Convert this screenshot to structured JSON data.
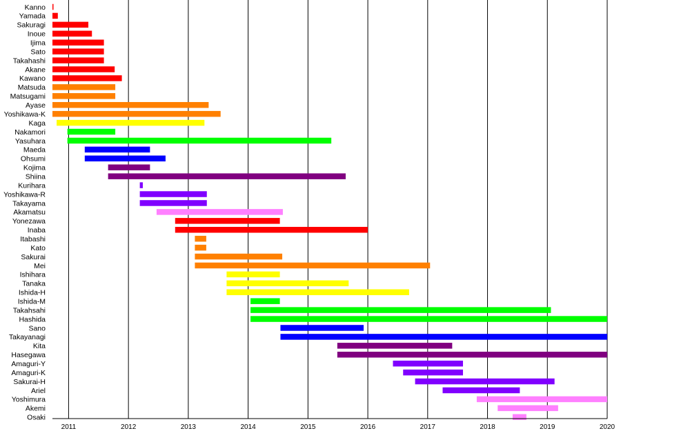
{
  "chart_data": {
    "type": "timeline",
    "x_unit": "year",
    "xlim": [
      2010.73,
      2020.0
    ],
    "x_ticks": [
      {
        "value": 2011,
        "label": "2011"
      },
      {
        "value": 2012,
        "label": "2012"
      },
      {
        "value": 2013,
        "label": "2013"
      },
      {
        "value": 2014,
        "label": "2014"
      },
      {
        "value": 2015,
        "label": "2015"
      },
      {
        "value": 2016,
        "label": "2016"
      },
      {
        "value": 2017,
        "label": "2017"
      },
      {
        "value": 2018,
        "label": "2018"
      },
      {
        "value": 2019,
        "label": "2019"
      },
      {
        "value": 2020,
        "label": "2020"
      }
    ],
    "grid": "vertical",
    "legend": "none",
    "rows": [
      {
        "name": "Kanno",
        "start": 2010.0,
        "end": 2010.23,
        "color": "#ff0000"
      },
      {
        "name": "Yamada",
        "start": 2010.0,
        "end": 2010.82,
        "color": "#ff0000"
      },
      {
        "name": "Sakuragi",
        "start": 2010.0,
        "end": 2011.33,
        "color": "#ff0000"
      },
      {
        "name": "Inoue",
        "start": 2010.0,
        "end": 2011.39,
        "color": "#ff0000"
      },
      {
        "name": "Ijima",
        "start": 2010.0,
        "end": 2011.59,
        "color": "#ff0000"
      },
      {
        "name": "Sato",
        "start": 2010.0,
        "end": 2011.59,
        "color": "#ff0000"
      },
      {
        "name": "Takahashi",
        "start": 2010.0,
        "end": 2011.59,
        "color": "#ff0000"
      },
      {
        "name": "Akane",
        "start": 2010.0,
        "end": 2011.77,
        "color": "#ff0000"
      },
      {
        "name": "Kawano",
        "start": 2010.0,
        "end": 2011.89,
        "color": "#ff0000"
      },
      {
        "name": "Matsuda",
        "start": 2010.63,
        "end": 2011.78,
        "color": "#ff8000"
      },
      {
        "name": "Matsugami",
        "start": 2010.63,
        "end": 2011.78,
        "color": "#ff8000"
      },
      {
        "name": "Ayase",
        "start": 2010.63,
        "end": 2013.34,
        "color": "#ff8000"
      },
      {
        "name": "Yoshikawa-K",
        "start": 2010.63,
        "end": 2013.54,
        "color": "#ff8000"
      },
      {
        "name": "Kaga",
        "start": 2010.8,
        "end": 2013.27,
        "color": "#ffff00"
      },
      {
        "name": "Nakamori",
        "start": 2010.98,
        "end": 2011.78,
        "color": "#00ff00"
      },
      {
        "name": "Yasuhara",
        "start": 2010.98,
        "end": 2015.39,
        "color": "#00ff00"
      },
      {
        "name": "Maeda",
        "start": 2011.27,
        "end": 2012.36,
        "color": "#0000ff"
      },
      {
        "name": "Ohsumi",
        "start": 2011.27,
        "end": 2012.62,
        "color": "#0000ff"
      },
      {
        "name": "Kojima",
        "start": 2011.66,
        "end": 2012.36,
        "color": "#800080"
      },
      {
        "name": "Shiina",
        "start": 2011.66,
        "end": 2015.63,
        "color": "#800080"
      },
      {
        "name": "Kurihara",
        "start": 2012.19,
        "end": 2012.24,
        "color": "#8000ff"
      },
      {
        "name": "Yoshikawa-R",
        "start": 2012.19,
        "end": 2013.31,
        "color": "#8000ff"
      },
      {
        "name": "Takayama",
        "start": 2012.19,
        "end": 2013.31,
        "color": "#8000ff"
      },
      {
        "name": "Akamatsu",
        "start": 2012.47,
        "end": 2014.58,
        "color": "#ff80ff"
      },
      {
        "name": "Yonezawa",
        "start": 2012.78,
        "end": 2014.53,
        "color": "#ff0000"
      },
      {
        "name": "Inaba",
        "start": 2012.78,
        "end": 2016.0,
        "color": "#ff0000"
      },
      {
        "name": "Itabashi",
        "start": 2013.11,
        "end": 2013.3,
        "color": "#ff8000"
      },
      {
        "name": "Kato",
        "start": 2013.11,
        "end": 2013.3,
        "color": "#ff8000"
      },
      {
        "name": "Sakurai",
        "start": 2013.11,
        "end": 2014.57,
        "color": "#ff8000"
      },
      {
        "name": "Mei",
        "start": 2013.11,
        "end": 2017.04,
        "color": "#ff8000"
      },
      {
        "name": "Ishihara",
        "start": 2013.64,
        "end": 2014.53,
        "color": "#ffff00"
      },
      {
        "name": "Tanaka",
        "start": 2013.64,
        "end": 2015.68,
        "color": "#ffff00"
      },
      {
        "name": "Ishida-H",
        "start": 2013.64,
        "end": 2016.69,
        "color": "#ffff00"
      },
      {
        "name": "Ishida-M",
        "start": 2014.04,
        "end": 2014.53,
        "color": "#00ff00"
      },
      {
        "name": "Takahsahi",
        "start": 2014.04,
        "end": 2019.06,
        "color": "#00ff00"
      },
      {
        "name": "Hashida",
        "start": 2014.04,
        "end": 2020.0,
        "color": "#00ff00"
      },
      {
        "name": "Sano",
        "start": 2014.54,
        "end": 2015.93,
        "color": "#0000ff"
      },
      {
        "name": "Takayanagi",
        "start": 2014.54,
        "end": 2020.0,
        "color": "#0000ff"
      },
      {
        "name": "Kita",
        "start": 2015.49,
        "end": 2017.41,
        "color": "#800080"
      },
      {
        "name": "Hasegawa",
        "start": 2015.49,
        "end": 2020.0,
        "color": "#800080"
      },
      {
        "name": "Amaguri-Y",
        "start": 2016.42,
        "end": 2017.59,
        "color": "#8000ff"
      },
      {
        "name": "Amaguri-K",
        "start": 2016.59,
        "end": 2017.59,
        "color": "#8000ff"
      },
      {
        "name": "Sakurai-H",
        "start": 2016.79,
        "end": 2019.12,
        "color": "#8000ff"
      },
      {
        "name": "Ariel",
        "start": 2017.25,
        "end": 2018.54,
        "color": "#8000ff"
      },
      {
        "name": "Yoshimura",
        "start": 2017.82,
        "end": 2020.0,
        "color": "#ff80ff"
      },
      {
        "name": "Akemi",
        "start": 2018.17,
        "end": 2019.18,
        "color": "#ff80ff"
      },
      {
        "name": "Osaki",
        "start": 2018.42,
        "end": 2018.65,
        "color": "#ff80ff"
      }
    ]
  }
}
